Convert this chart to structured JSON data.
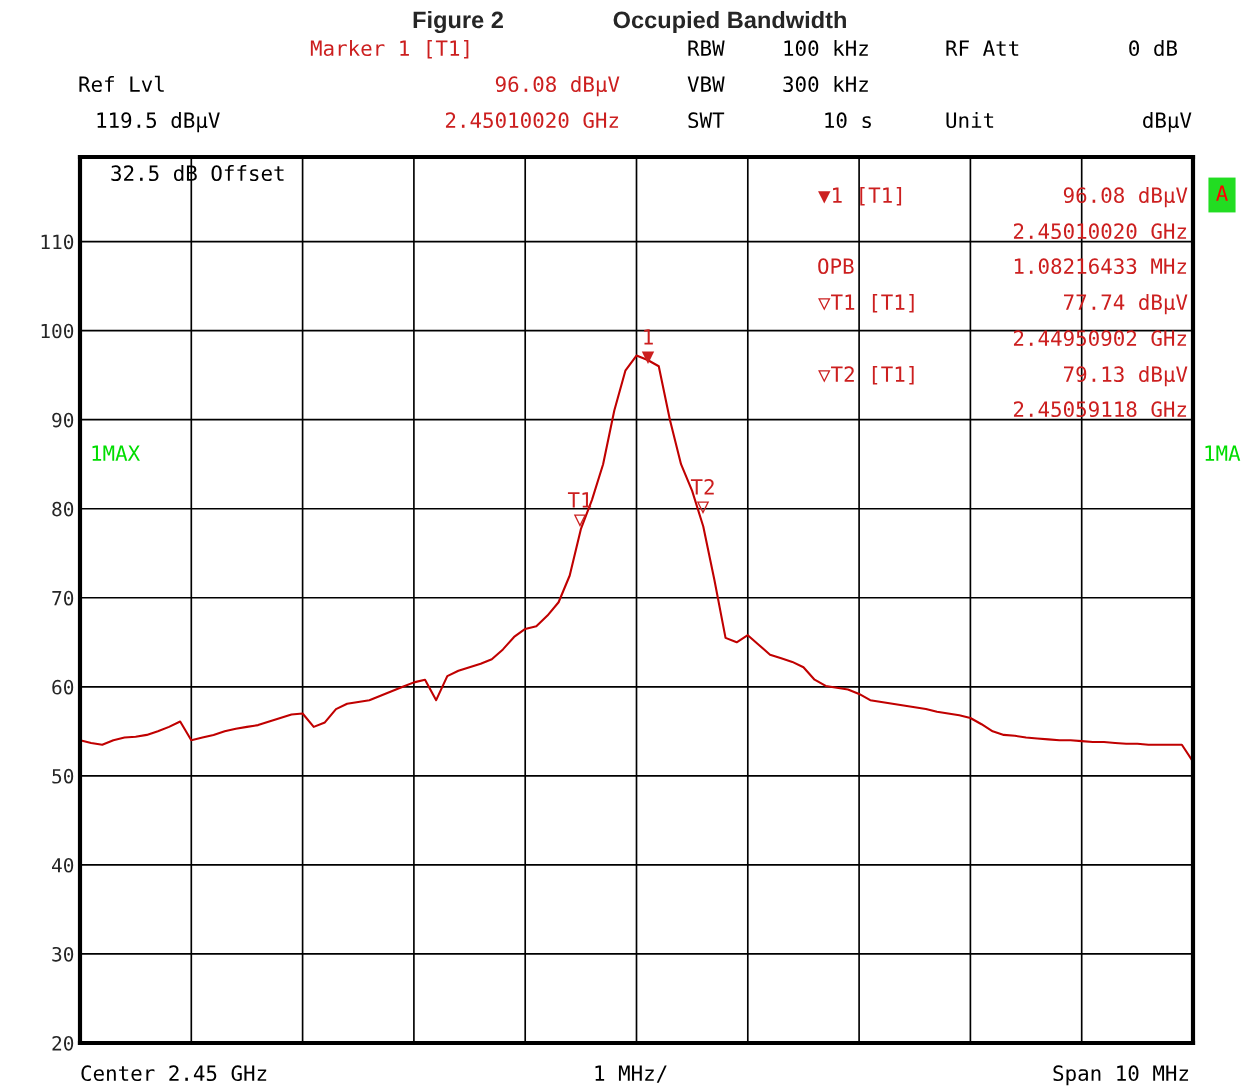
{
  "chart_data": {
    "type": "line",
    "title": "Figure 2",
    "subtitle": "Occupied Bandwidth",
    "categories": [
      null,
      null,
      null,
      null,
      null,
      null,
      null,
      null,
      null,
      null,
      null,
      null,
      null,
      null,
      null,
      null,
      null,
      null,
      null,
      null,
      null,
      null,
      null,
      null,
      null,
      null,
      null,
      null,
      null,
      null,
      null,
      null,
      null,
      null,
      null,
      null,
      null,
      null,
      null,
      null,
      null,
      null,
      null,
      null,
      null,
      null,
      null,
      null,
      null,
      null,
      null,
      null,
      null,
      null,
      null,
      null,
      null,
      null,
      null,
      null,
      null,
      null,
      null,
      null,
      null,
      null,
      null,
      null,
      null,
      null,
      null,
      null,
      null,
      null,
      null,
      null,
      null,
      null,
      null,
      null,
      null,
      null,
      null,
      null,
      null,
      null,
      null,
      null,
      null,
      null,
      null,
      null,
      null,
      null,
      null,
      null,
      null,
      null,
      null,
      null,
      null
    ],
    "series": [
      {
        "color": "#c00000",
        "values": [
          54.0,
          53.7,
          53.5,
          54.0,
          54.3,
          54.4,
          54.6,
          55.0,
          55.5,
          56.1,
          54.0,
          54.3,
          54.6,
          55.0,
          55.3,
          55.5,
          55.7,
          56.1,
          56.5,
          56.9,
          57.0,
          55.5,
          56.0,
          57.5,
          58.1,
          58.3,
          58.5,
          59.0,
          59.5,
          60.0,
          60.5,
          60.8,
          58.5,
          61.2,
          61.8,
          62.2,
          62.6,
          63.1,
          64.2,
          65.6,
          66.5,
          66.8,
          68.0,
          69.5,
          72.5,
          77.7,
          81.0,
          85.0,
          91.0,
          95.5,
          97.2,
          96.7,
          96.0,
          90.0,
          85.0,
          82.0,
          78.0,
          72.0,
          65.5,
          65.0,
          65.8,
          64.7,
          63.6,
          63.2,
          62.8,
          62.2,
          60.8,
          60.1,
          59.9,
          59.7,
          59.2,
          58.5,
          58.3,
          58.1,
          57.9,
          57.7,
          57.5,
          57.2,
          57.0,
          56.8,
          56.5,
          55.8,
          55.0,
          54.6,
          54.5,
          54.3,
          54.2,
          54.1,
          54.0,
          54.0,
          53.9,
          53.8,
          53.8,
          53.7,
          53.6,
          53.6,
          53.5,
          53.5,
          53.5,
          53.5,
          51.6
        ]
      }
    ],
    "ylim": [
      20,
      119.5
    ],
    "yticks": [
      20,
      30,
      40,
      50,
      60,
      70,
      80,
      90,
      100,
      110
    ],
    "grid": true,
    "marker": "none",
    "line_style": "solid",
    "annotations": [
      "Marker 1 [T1]",
      "96.08 dBµV",
      "2.45010020 GHz",
      "RBW",
      "100 kHz",
      "RF Att",
      "0 dB",
      "VBW",
      "300 kHz",
      "SWT",
      "10 s",
      "Unit",
      "dBµV",
      "Ref Lvl",
      "119.5 dBµV",
      "32.5 dB Offset",
      "▼1 [T1]",
      "96.08 dBµV",
      "2.45010020 GHz",
      "OPB",
      "1.08216433 MHz",
      "▽T1 [T1]",
      "77.74 dBµV",
      "2.44950902 GHz",
      "▽T2 [T1]",
      "79.13 dBµV",
      "2.45059118 GHz",
      "1MAX",
      "1MA",
      "A",
      "Center 2.45 GHz",
      "1 MHz/",
      "Span 10 MHz",
      "1\n▼",
      "T1\n▽",
      "T2\n▽"
    ]
  }
}
